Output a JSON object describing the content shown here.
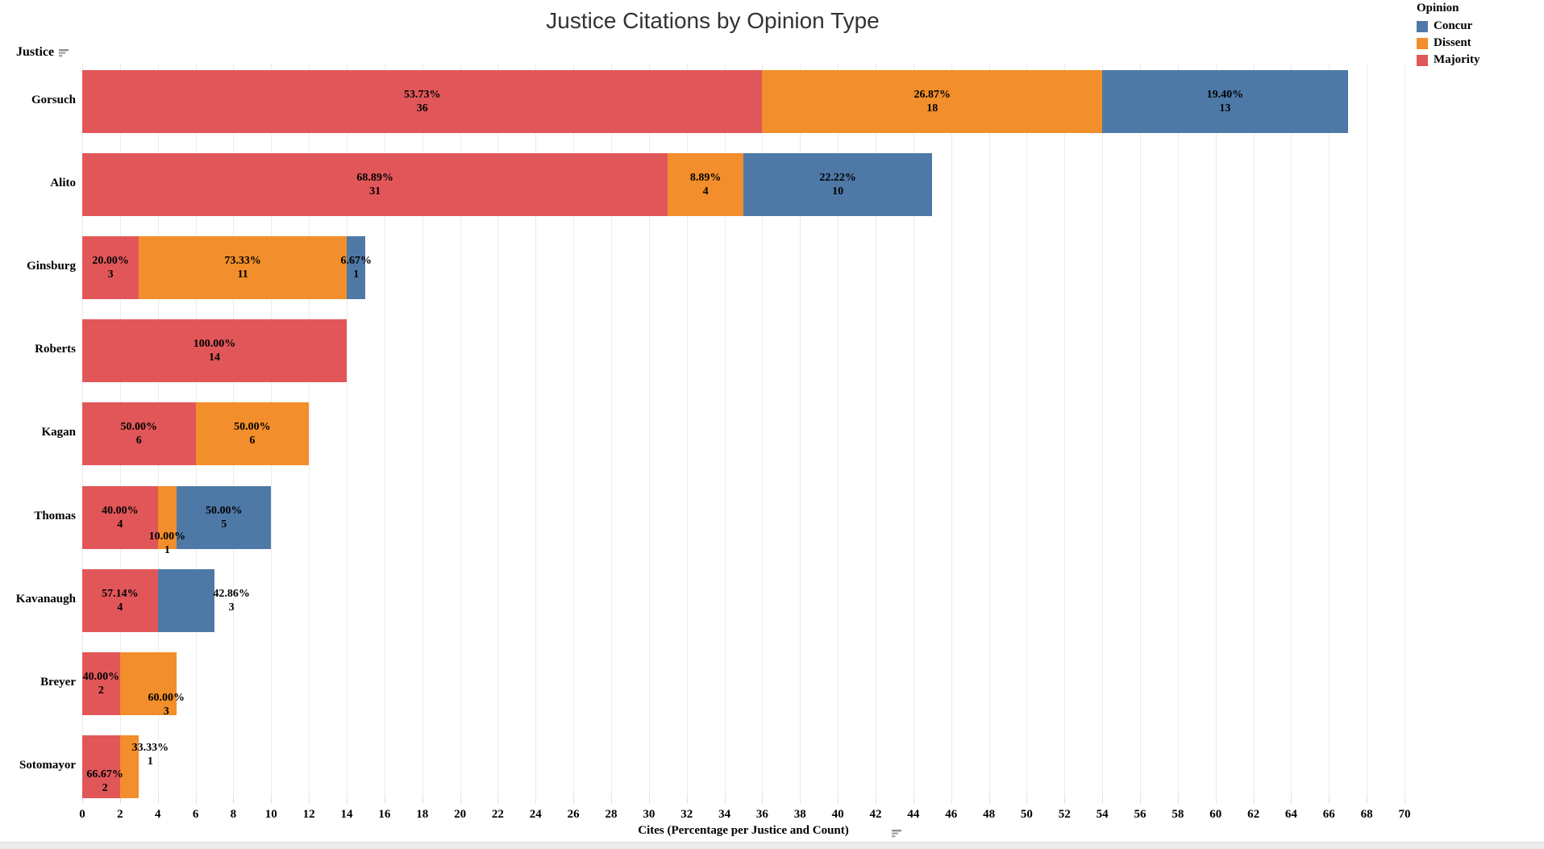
{
  "title": "Justice Citations by Opinion Type",
  "row_axis": {
    "field": "Justice"
  },
  "x_axis": {
    "label": "Cites (Percentage per Justice and Count)",
    "min": 0,
    "max": 70,
    "tick_step": 2
  },
  "legend": {
    "title": "Opinion",
    "items": [
      {
        "label": "Concur",
        "color": "#4e79a7"
      },
      {
        "label": "Dissent",
        "color": "#f28e2b"
      },
      {
        "label": "Majority",
        "color": "#e15759"
      }
    ]
  },
  "chart_data": {
    "type": "bar",
    "orientation": "horizontal",
    "stacked": true,
    "title": "Justice Citations by Opinion Type",
    "xlabel": "Cites (Percentage per Justice and Count)",
    "ylabel": "Justice",
    "xlim": [
      0,
      70
    ],
    "tick_step": 2,
    "grid": true,
    "legend_position": "top-right",
    "series_order": [
      "Majority",
      "Dissent",
      "Concur"
    ],
    "series_colors": {
      "Majority": "#e15759",
      "Dissent": "#f28e2b",
      "Concur": "#4e79a7"
    },
    "rows": [
      {
        "justice": "Gorsuch",
        "segments": [
          {
            "opinion": "Majority",
            "count": 36,
            "pct": "53.73%",
            "label": {
              "x": 18,
              "dy": 0
            }
          },
          {
            "opinion": "Dissent",
            "count": 18,
            "pct": "26.87%",
            "label": {
              "x": 45,
              "dy": 0
            }
          },
          {
            "opinion": "Concur",
            "count": 13,
            "pct": "19.40%",
            "label": {
              "x": 60.5,
              "dy": 0
            }
          }
        ]
      },
      {
        "justice": "Alito",
        "segments": [
          {
            "opinion": "Majority",
            "count": 31,
            "pct": "68.89%",
            "label": {
              "x": 15.5,
              "dy": 0
            }
          },
          {
            "opinion": "Dissent",
            "count": 4,
            "pct": "8.89%",
            "label": {
              "x": 33,
              "dy": 0
            }
          },
          {
            "opinion": "Concur",
            "count": 10,
            "pct": "22.22%",
            "label": {
              "x": 40,
              "dy": 0
            }
          }
        ]
      },
      {
        "justice": "Ginsburg",
        "segments": [
          {
            "opinion": "Majority",
            "count": 3,
            "pct": "20.00%",
            "label": {
              "x": 1.5,
              "dy": 0
            }
          },
          {
            "opinion": "Dissent",
            "count": 11,
            "pct": "73.33%",
            "label": {
              "x": 8.5,
              "dy": 0
            }
          },
          {
            "opinion": "Concur",
            "count": 1,
            "pct": "6.67%",
            "label": {
              "x": 14.5,
              "dy": 0
            }
          }
        ]
      },
      {
        "justice": "Roberts",
        "segments": [
          {
            "opinion": "Majority",
            "count": 14,
            "pct": "100.00%",
            "label": {
              "x": 7,
              "dy": 0
            }
          }
        ]
      },
      {
        "justice": "Kagan",
        "segments": [
          {
            "opinion": "Majority",
            "count": 6,
            "pct": "50.00%",
            "label": {
              "x": 3,
              "dy": 0
            }
          },
          {
            "opinion": "Dissent",
            "count": 6,
            "pct": "50.00%",
            "label": {
              "x": 9,
              "dy": 0
            }
          }
        ]
      },
      {
        "justice": "Thomas",
        "segments": [
          {
            "opinion": "Majority",
            "count": 4,
            "pct": "40.00%",
            "label": {
              "x": 2,
              "dy": 0
            }
          },
          {
            "opinion": "Dissent",
            "count": 1,
            "pct": "10.00%",
            "label": {
              "x": 4.5,
              "dy": 32
            }
          },
          {
            "opinion": "Concur",
            "count": 5,
            "pct": "50.00%",
            "label": {
              "x": 7.5,
              "dy": 0
            }
          }
        ]
      },
      {
        "justice": "Kavanaugh",
        "segments": [
          {
            "opinion": "Majority",
            "count": 4,
            "pct": "57.14%",
            "label": {
              "x": 2,
              "dy": 0
            }
          },
          {
            "opinion": "Concur",
            "count": 3,
            "pct": "42.86%",
            "label": {
              "x": 7.9,
              "dy": 0
            }
          }
        ]
      },
      {
        "justice": "Breyer",
        "segments": [
          {
            "opinion": "Majority",
            "count": 2,
            "pct": "40.00%",
            "label": {
              "x": 1,
              "dy": 0
            }
          },
          {
            "opinion": "Dissent",
            "count": 3,
            "pct": "60.00%",
            "label": {
              "x": 4.45,
              "dy": 26
            }
          }
        ]
      },
      {
        "justice": "Sotomayor",
        "segments": [
          {
            "opinion": "Majority",
            "count": 2,
            "pct": "66.67%",
            "label": {
              "x": 1.2,
              "dy": 18
            }
          },
          {
            "opinion": "Dissent",
            "count": 1,
            "pct": "33.33%",
            "label": {
              "x": 3.6,
              "dy": -15
            }
          }
        ]
      }
    ]
  }
}
